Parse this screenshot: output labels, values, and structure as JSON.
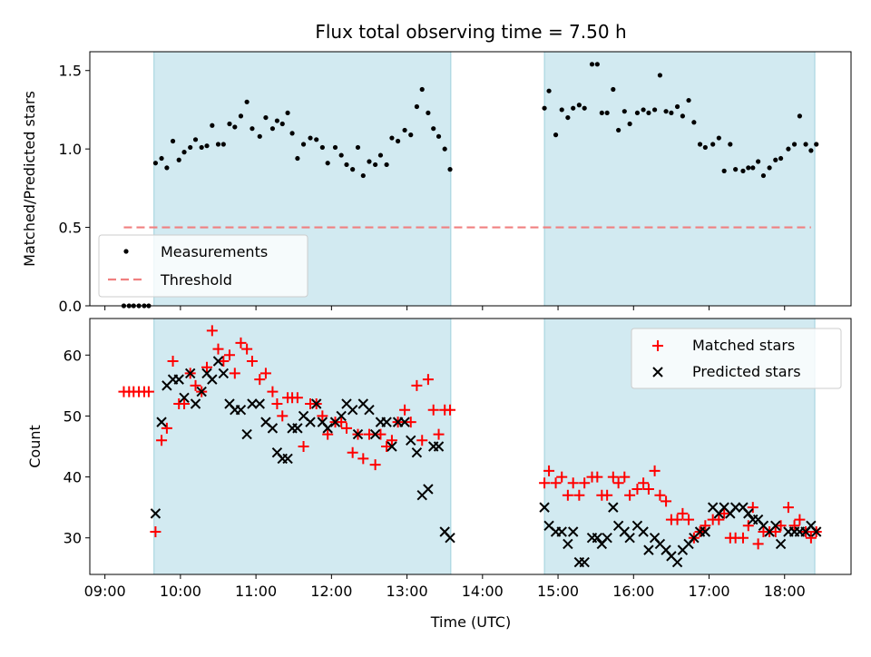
{
  "chart_data": [
    {
      "type": "scatter",
      "title": "Flux total observing time = 7.50 h",
      "ylabel": "Matched/Predicted stars",
      "xlabel": "",
      "xlim": [
        8.8,
        18.88
      ],
      "ylim": [
        0.0,
        1.62
      ],
      "yticks": [
        0.0,
        0.5,
        1.0,
        1.5
      ],
      "ytick_labels": [
        "0.0",
        "0.5",
        "1.0",
        "1.5"
      ],
      "grid": false,
      "legend": "lower-left",
      "shaded_intervals": [
        [
          9.65,
          13.58
        ],
        [
          14.82,
          18.4
        ]
      ],
      "shade_color": "#add8e6",
      "series": [
        {
          "name": "Measurements",
          "marker": "dot",
          "color": "#000000",
          "x": [
            9.25,
            9.32,
            9.38,
            9.45,
            9.52,
            9.58,
            9.67,
            9.75,
            9.82,
            9.9,
            9.98,
            10.05,
            10.13,
            10.2,
            10.28,
            10.35,
            10.42,
            10.5,
            10.57,
            10.65,
            10.72,
            10.8,
            10.88,
            10.95,
            11.05,
            11.13,
            11.22,
            11.28,
            11.35,
            11.42,
            11.48,
            11.55,
            11.63,
            11.72,
            11.8,
            11.88,
            11.95,
            12.05,
            12.13,
            12.2,
            12.28,
            12.35,
            12.42,
            12.5,
            12.58,
            12.65,
            12.73,
            12.8,
            12.88,
            12.97,
            13.05,
            13.13,
            13.2,
            13.28,
            13.35,
            13.42,
            13.5,
            13.57,
            14.82,
            14.88,
            14.97,
            15.05,
            15.13,
            15.2,
            15.28,
            15.35,
            15.45,
            15.52,
            15.58,
            15.65,
            15.73,
            15.8,
            15.88,
            15.95,
            16.05,
            16.13,
            16.2,
            16.28,
            16.35,
            16.43,
            16.5,
            16.58,
            16.65,
            16.73,
            16.8,
            16.88,
            16.95,
            17.05,
            17.13,
            17.2,
            17.28,
            17.35,
            17.45,
            17.52,
            17.58,
            17.65,
            17.72,
            17.8,
            17.88,
            17.95,
            18.05,
            18.13,
            18.2,
            18.28,
            18.35,
            18.42
          ],
          "y": [
            0,
            0,
            0,
            0,
            0,
            0,
            0.91,
            0.94,
            0.88,
            1.05,
            0.93,
            0.98,
            1.01,
            1.06,
            1.01,
            1.02,
            1.15,
            1.03,
            1.03,
            1.16,
            1.14,
            1.21,
            1.3,
            1.13,
            1.08,
            1.2,
            1.13,
            1.18,
            1.16,
            1.23,
            1.1,
            0.94,
            1.03,
            1.07,
            1.06,
            1.01,
            0.91,
            1.01,
            0.96,
            0.9,
            0.87,
            1.01,
            0.83,
            0.92,
            0.9,
            0.96,
            0.9,
            1.07,
            1.05,
            1.12,
            1.09,
            1.27,
            1.38,
            1.23,
            1.13,
            1.08,
            1.0,
            0.87,
            1.26,
            1.37,
            1.09,
            1.25,
            1.2,
            1.26,
            1.28,
            1.26,
            1.54,
            1.54,
            1.23,
            1.23,
            1.38,
            1.12,
            1.24,
            1.16,
            1.23,
            1.25,
            1.23,
            1.25,
            1.47,
            1.24,
            1.23,
            1.27,
            1.21,
            1.31,
            1.17,
            1.03,
            1.01,
            1.03,
            1.07,
            0.86,
            1.03,
            0.87,
            0.86,
            0.88,
            0.88,
            0.92,
            0.83,
            0.88,
            0.93,
            0.94,
            1.0,
            1.03,
            1.21,
            1.03,
            0.99,
            1.03
          ]
        },
        {
          "name": "Threshold",
          "marker": "dashed-line",
          "color": "#f08080",
          "x": [
            9.25,
            18.35
          ],
          "y": [
            0.5,
            0.5
          ]
        }
      ]
    },
    {
      "type": "scatter",
      "title": "",
      "ylabel": "Count",
      "xlabel": "Time (UTC)",
      "xlim": [
        8.8,
        18.88
      ],
      "ylim": [
        24,
        66
      ],
      "yticks": [
        30,
        40,
        50,
        60
      ],
      "ytick_labels": [
        "30",
        "40",
        "50",
        "60"
      ],
      "xticks": [
        9,
        10,
        11,
        12,
        13,
        14,
        15,
        16,
        17,
        18
      ],
      "xtick_labels": [
        "09:00",
        "10:00",
        "11:00",
        "12:00",
        "13:00",
        "14:00",
        "15:00",
        "16:00",
        "17:00",
        "18:00"
      ],
      "grid": false,
      "legend": "upper-right",
      "shaded_intervals": [
        [
          9.65,
          13.58
        ],
        [
          14.82,
          18.4
        ]
      ],
      "series": [
        {
          "name": "Matched stars",
          "marker": "plus",
          "color": "#ff0000",
          "x": [
            9.25,
            9.32,
            9.38,
            9.45,
            9.52,
            9.58,
            9.67,
            9.75,
            9.82,
            9.9,
            9.98,
            10.05,
            10.13,
            10.2,
            10.28,
            10.35,
            10.42,
            10.5,
            10.57,
            10.65,
            10.72,
            10.8,
            10.88,
            10.95,
            11.05,
            11.13,
            11.22,
            11.28,
            11.35,
            11.42,
            11.48,
            11.55,
            11.63,
            11.72,
            11.8,
            11.88,
            11.95,
            12.05,
            12.13,
            12.2,
            12.28,
            12.35,
            12.42,
            12.5,
            12.58,
            12.65,
            12.73,
            12.8,
            12.88,
            12.97,
            13.05,
            13.13,
            13.2,
            13.28,
            13.35,
            13.42,
            13.5,
            13.57,
            14.82,
            14.88,
            14.97,
            15.05,
            15.13,
            15.2,
            15.28,
            15.35,
            15.45,
            15.52,
            15.58,
            15.65,
            15.73,
            15.8,
            15.88,
            15.95,
            16.05,
            16.13,
            16.2,
            16.28,
            16.35,
            16.43,
            16.5,
            16.58,
            16.65,
            16.73,
            16.8,
            16.88,
            16.95,
            17.05,
            17.13,
            17.2,
            17.28,
            17.35,
            17.45,
            17.52,
            17.58,
            17.65,
            17.72,
            17.8,
            17.88,
            17.95,
            18.05,
            18.13,
            18.2,
            18.28,
            18.35,
            18.42
          ],
          "y": [
            54,
            54,
            54,
            54,
            54,
            54,
            31,
            46,
            48,
            59,
            52,
            52,
            57,
            55,
            54,
            58,
            64,
            61,
            59,
            60,
            57,
            62,
            61,
            59,
            56,
            57,
            54,
            52,
            50,
            53,
            53,
            53,
            45,
            52,
            52,
            50,
            47,
            49,
            49,
            48,
            44,
            47,
            43,
            47,
            42,
            47,
            45,
            46,
            49,
            51,
            49,
            55,
            46,
            56,
            51,
            47,
            51,
            51,
            39,
            41,
            39,
            40,
            37,
            39,
            37,
            39,
            40,
            40,
            37,
            37,
            40,
            39,
            40,
            37,
            38,
            39,
            38,
            41,
            37,
            36,
            33,
            33,
            34,
            33,
            30,
            31,
            32,
            33,
            33,
            34,
            30,
            30,
            30,
            32,
            35,
            29,
            31,
            31,
            31,
            32,
            35,
            32,
            33,
            31,
            30,
            31
          ],
          "y_note": ""
        },
        {
          "name": "Predicted stars",
          "marker": "x",
          "color": "#000000",
          "x": [
            9.67,
            9.75,
            9.82,
            9.9,
            9.98,
            10.05,
            10.13,
            10.2,
            10.28,
            10.35,
            10.42,
            10.5,
            10.57,
            10.65,
            10.72,
            10.8,
            10.88,
            10.95,
            11.05,
            11.13,
            11.22,
            11.28,
            11.35,
            11.42,
            11.48,
            11.55,
            11.63,
            11.72,
            11.8,
            11.88,
            11.95,
            12.05,
            12.13,
            12.2,
            12.28,
            12.35,
            12.42,
            12.5,
            12.58,
            12.65,
            12.73,
            12.8,
            12.88,
            12.97,
            13.05,
            13.13,
            13.2,
            13.28,
            13.35,
            13.42,
            13.5,
            13.57,
            14.82,
            14.88,
            14.97,
            15.05,
            15.13,
            15.2,
            15.28,
            15.35,
            15.45,
            15.52,
            15.58,
            15.65,
            15.73,
            15.8,
            15.88,
            15.95,
            16.05,
            16.13,
            16.2,
            16.28,
            16.35,
            16.43,
            16.5,
            16.58,
            16.65,
            16.73,
            16.8,
            16.88,
            16.95,
            17.05,
            17.13,
            17.2,
            17.28,
            17.35,
            17.45,
            17.52,
            17.58,
            17.65,
            17.72,
            17.8,
            17.88,
            17.95,
            18.05,
            18.13,
            18.2,
            18.28,
            18.35,
            18.42
          ],
          "y": [
            34,
            49,
            55,
            56,
            56,
            53,
            57,
            52,
            54,
            57,
            56,
            59,
            57,
            52,
            51,
            51,
            47,
            52,
            52,
            49,
            48,
            44,
            43,
            43,
            48,
            48,
            50,
            49,
            52,
            49,
            48,
            49,
            50,
            52,
            51,
            47,
            52,
            51,
            47,
            49,
            49,
            45,
            49,
            49,
            46,
            44,
            37,
            38,
            45,
            45,
            31,
            30,
            35,
            32,
            31,
            31,
            29,
            31,
            26,
            26,
            30,
            30,
            29,
            30,
            35,
            32,
            31,
            30,
            32,
            31,
            28,
            30,
            29,
            28,
            27,
            26,
            28,
            29,
            30,
            31,
            31,
            35,
            34,
            35,
            34,
            35,
            35,
            34,
            33,
            33,
            32,
            31,
            32,
            29,
            31,
            31,
            31,
            31,
            32,
            31
          ]
        }
      ]
    }
  ]
}
